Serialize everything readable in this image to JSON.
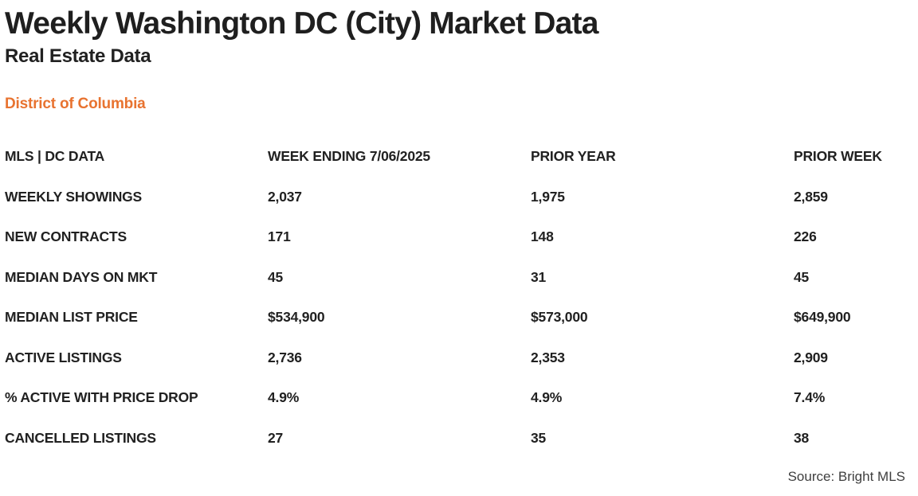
{
  "header": {
    "title": "Weekly Washington DC (City) Market Data",
    "subtitle": "Real Estate Data",
    "region": "District of Columbia"
  },
  "chart_data": {
    "type": "table",
    "title": "Weekly Washington DC (City) Market Data",
    "subtitle": "Real Estate Data",
    "region": "District of Columbia",
    "columns": [
      "MLS | DC DATA",
      "WEEK ENDING 7/06/2025",
      "PRIOR YEAR",
      "PRIOR WEEK"
    ],
    "rows": [
      {
        "label": "WEEKLY SHOWINGS",
        "values": [
          "2,037",
          "1,975",
          "2,859"
        ]
      },
      {
        "label": "NEW CONTRACTS",
        "values": [
          "171",
          "148",
          "226"
        ]
      },
      {
        "label": "MEDIAN DAYS ON MKT",
        "values": [
          "45",
          "31",
          "45"
        ]
      },
      {
        "label": "MEDIAN LIST PRICE",
        "values": [
          "$534,900",
          "$573,000",
          "$649,900"
        ]
      },
      {
        "label": "ACTIVE LISTINGS",
        "values": [
          "2,736",
          "2,353",
          "2,909"
        ]
      },
      {
        "label": "% ACTIVE WITH PRICE DROP",
        "values": [
          "4.9%",
          "4.9%",
          "7.4%"
        ]
      },
      {
        "label": "CANCELLED LISTINGS",
        "values": [
          "27",
          "35",
          "38"
        ]
      }
    ],
    "source": "Source: Bright MLS"
  },
  "footer": {
    "source": "Source: Bright MLS"
  },
  "colors": {
    "accent_orange": "#E87330",
    "text": "#212121",
    "source_text": "#3F3F3F",
    "background": "#FFFFFF"
  }
}
